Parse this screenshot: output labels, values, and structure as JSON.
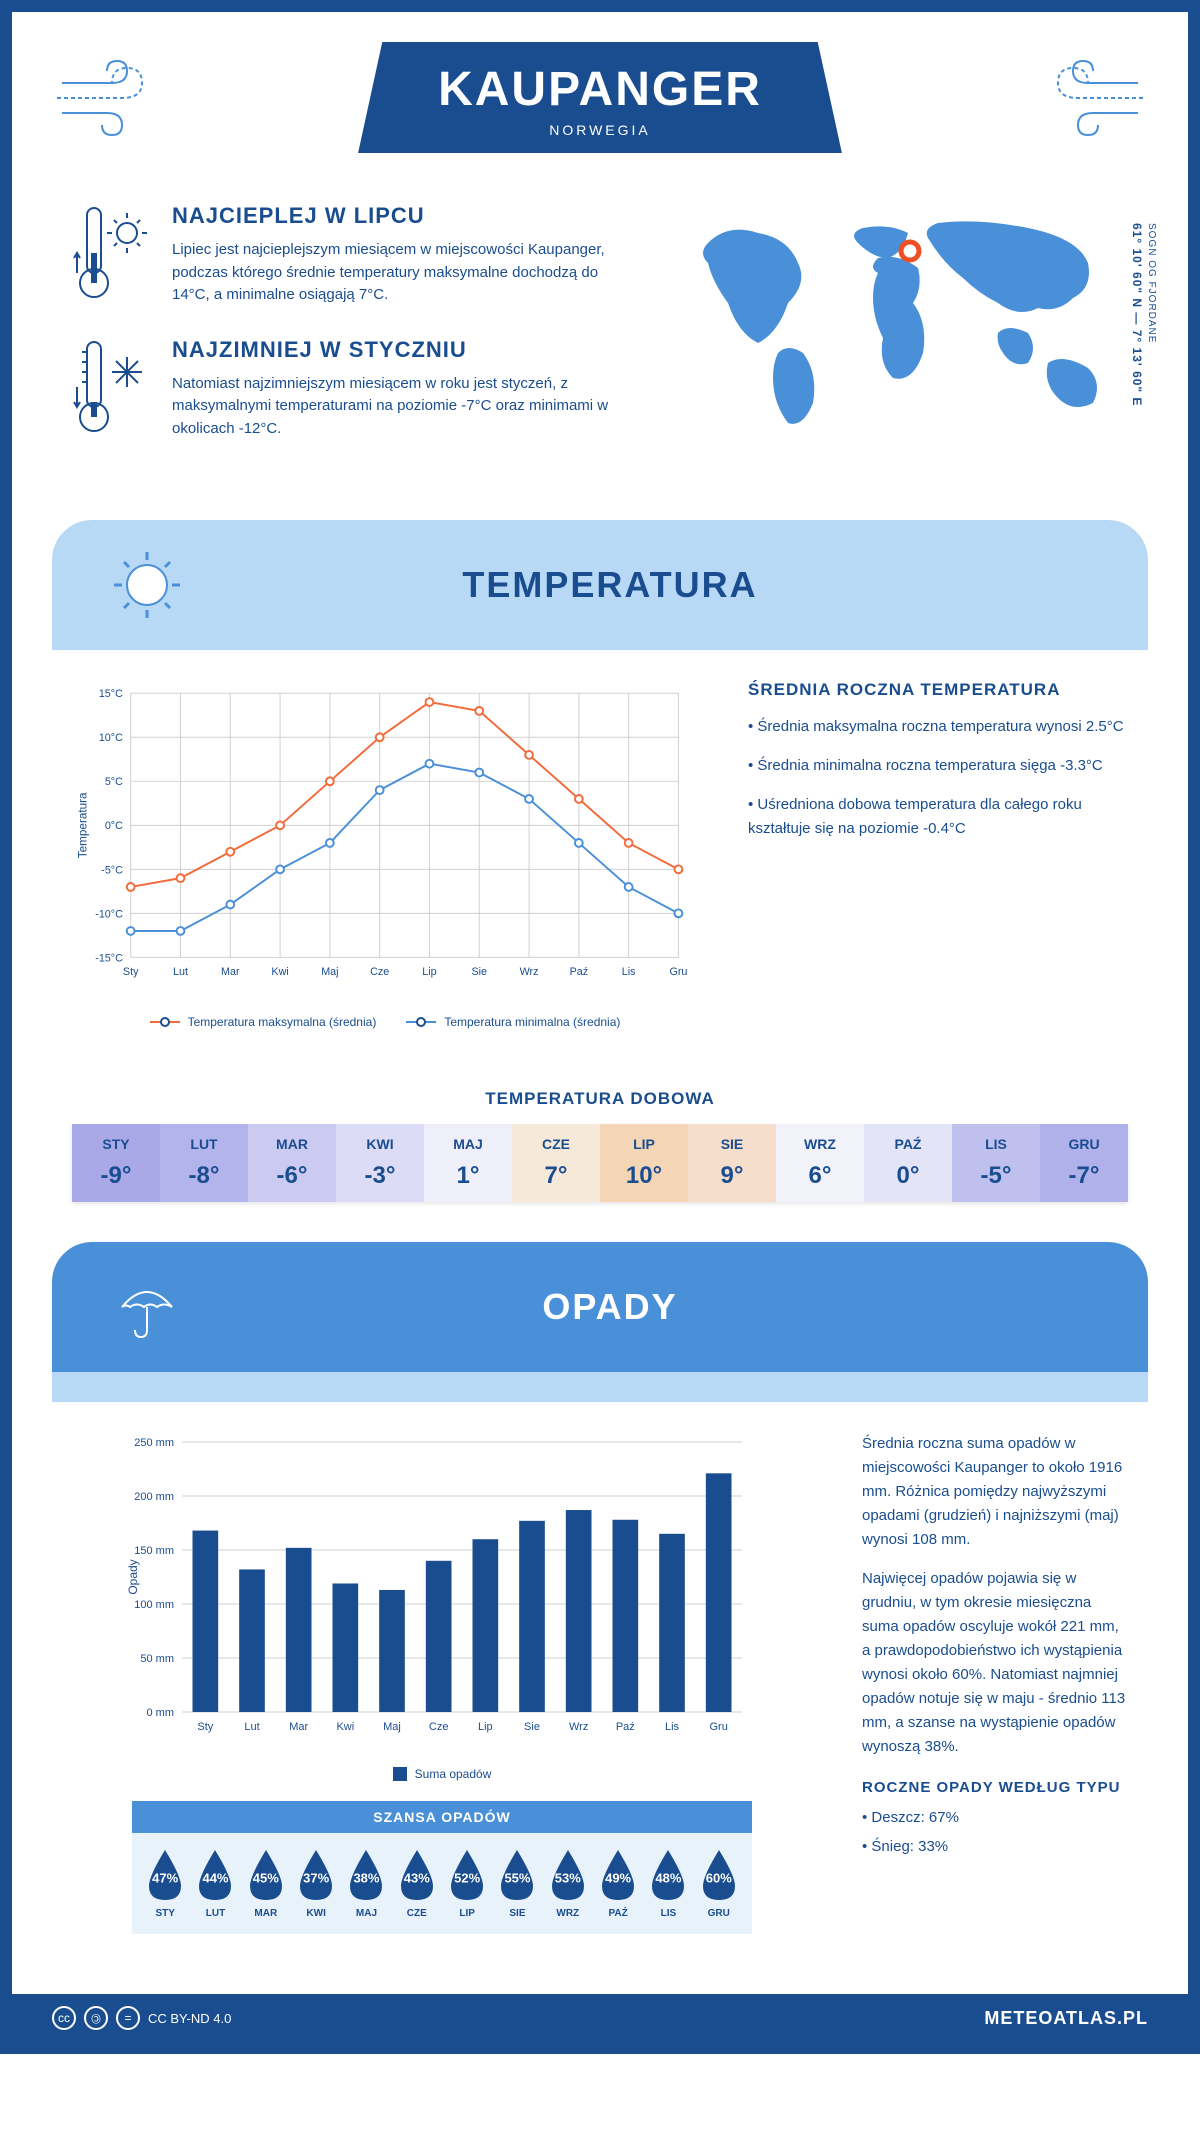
{
  "header": {
    "title": "KAUPANGER",
    "subtitle": "NORWEGIA"
  },
  "coords": {
    "lat": "61° 10' 60\" N",
    "lon": "7° 13' 60\" E",
    "region": "SOGN OG FJORDANE"
  },
  "intro": {
    "hot": {
      "heading": "NAJCIEPLEJ W LIPCU",
      "text": "Lipiec jest najcieplejszym miesiącem w miejscowości Kaupanger, podczas którego średnie temperatury maksymalne dochodzą do 14°C, a minimalne osiągają 7°C."
    },
    "cold": {
      "heading": "NAJZIMNIEJ W STYCZNIU",
      "text": "Natomiast najzimniejszym miesiącem w roku jest styczeń, z maksymalnymi temperaturami na poziomie -7°C oraz minimami w okolicach -12°C."
    }
  },
  "temp_section": {
    "title": "TEMPERATURA",
    "chart": {
      "type": "line",
      "months": [
        "Sty",
        "Lut",
        "Mar",
        "Kwi",
        "Maj",
        "Cze",
        "Lip",
        "Sie",
        "Wrz",
        "Paź",
        "Lis",
        "Gru"
      ],
      "y_label": "Temperatura",
      "ylim": [
        -15,
        15
      ],
      "ytick_step": 5,
      "yticks": [
        "-15°C",
        "-10°C",
        "-5°C",
        "0°C",
        "5°C",
        "10°C",
        "15°C"
      ],
      "series": [
        {
          "name": "Temperatura maksymalna (średnia)",
          "color": "#f26b3a",
          "values": [
            -7,
            -6,
            -3,
            0,
            5,
            10,
            14,
            13,
            8,
            3,
            -2,
            -5
          ]
        },
        {
          "name": "Temperatura minimalna (średnia)",
          "color": "#4a90d9",
          "values": [
            -12,
            -12,
            -9,
            -5,
            -2,
            4,
            7,
            6,
            3,
            -2,
            -7,
            -10
          ]
        }
      ],
      "grid_color": "#d8d8d8",
      "background_color": "#ffffff",
      "label_fontsize": 11
    },
    "side": {
      "heading": "ŚREDNIA ROCZNA TEMPERATURA",
      "bullets": [
        "Średnia maksymalna roczna temperatura wynosi 2.5°C",
        "Średnia minimalna roczna temperatura sięga -3.3°C",
        "Uśredniona dobowa temperatura dla całego roku kształtuje się na poziomie -0.4°C"
      ]
    },
    "daily": {
      "title": "TEMPERATURA DOBOWA",
      "months": [
        "STY",
        "LUT",
        "MAR",
        "KWI",
        "MAJ",
        "CZE",
        "LIP",
        "SIE",
        "WRZ",
        "PAŹ",
        "LIS",
        "GRU"
      ],
      "temps": [
        "-9°",
        "-8°",
        "-6°",
        "-3°",
        "1°",
        "7°",
        "10°",
        "9°",
        "6°",
        "0°",
        "-5°",
        "-7°"
      ],
      "cell_colors": [
        "#a9a9e8",
        "#b4b4ec",
        "#cbcbf2",
        "#dcdcf6",
        "#efeff9",
        "#f7e9d9",
        "#f4d6b7",
        "#f5decb",
        "#f2f2fa",
        "#e4e4f7",
        "#c0c0ef",
        "#b0b0ea"
      ]
    }
  },
  "precip_section": {
    "title": "OPADY",
    "chart": {
      "type": "bar",
      "months": [
        "Sty",
        "Lut",
        "Mar",
        "Kwi",
        "Maj",
        "Cze",
        "Lip",
        "Sie",
        "Wrz",
        "Paź",
        "Lis",
        "Gru"
      ],
      "y_label": "Opady",
      "ylim": [
        0,
        250
      ],
      "ytick_step": 50,
      "yticks": [
        "0 mm",
        "50 mm",
        "100 mm",
        "150 mm",
        "200 mm",
        "250 mm"
      ],
      "values": [
        168,
        132,
        152,
        119,
        113,
        140,
        160,
        177,
        187,
        178,
        165,
        221
      ],
      "bar_color": "#1a4d8f",
      "legend": "Suma opadów",
      "grid_color": "#d8d8d8",
      "background_color": "#ffffff",
      "bar_width": 0.55,
      "label_fontsize": 11
    },
    "side": {
      "para1": "Średnia roczna suma opadów w miejscowości Kaupanger to około 1916 mm. Różnica pomiędzy najwyższymi opadami (grudzień) i najniższymi (maj) wynosi 108 mm.",
      "para2": "Najwięcej opadów pojawia się w grudniu, w tym okresie miesięczna suma opadów oscyluje wokół 221 mm, a prawdopodobieństwo ich wystąpienia wynosi około 60%. Natomiast najmniej opadów notuje się w maju - średnio 113 mm, a szanse na wystąpienie opadów wynoszą 38%."
    },
    "chance": {
      "title": "SZANSA OPADÓW",
      "months": [
        "STY",
        "LUT",
        "MAR",
        "KWI",
        "MAJ",
        "CZE",
        "LIP",
        "SIE",
        "WRZ",
        "PAŹ",
        "LIS",
        "GRU"
      ],
      "pct": [
        "47%",
        "44%",
        "45%",
        "37%",
        "38%",
        "43%",
        "52%",
        "55%",
        "53%",
        "49%",
        "48%",
        "60%"
      ],
      "drop_color": "#1a4d8f",
      "bg_color": "#e8f2fb",
      "header_bg": "#4a90d9"
    },
    "by_type": {
      "heading": "ROCZNE OPADY WEDŁUG TYPU",
      "items": [
        "Deszcz: 67%",
        "Śnieg: 33%"
      ]
    }
  },
  "footer": {
    "license": "CC BY-ND 4.0",
    "brand": "METEOATLAS.PL"
  },
  "colors": {
    "primary": "#1a4d8f",
    "light_blue": "#b8d9f5",
    "accent_blue": "#4a90d9",
    "orange": "#f26b3a"
  }
}
